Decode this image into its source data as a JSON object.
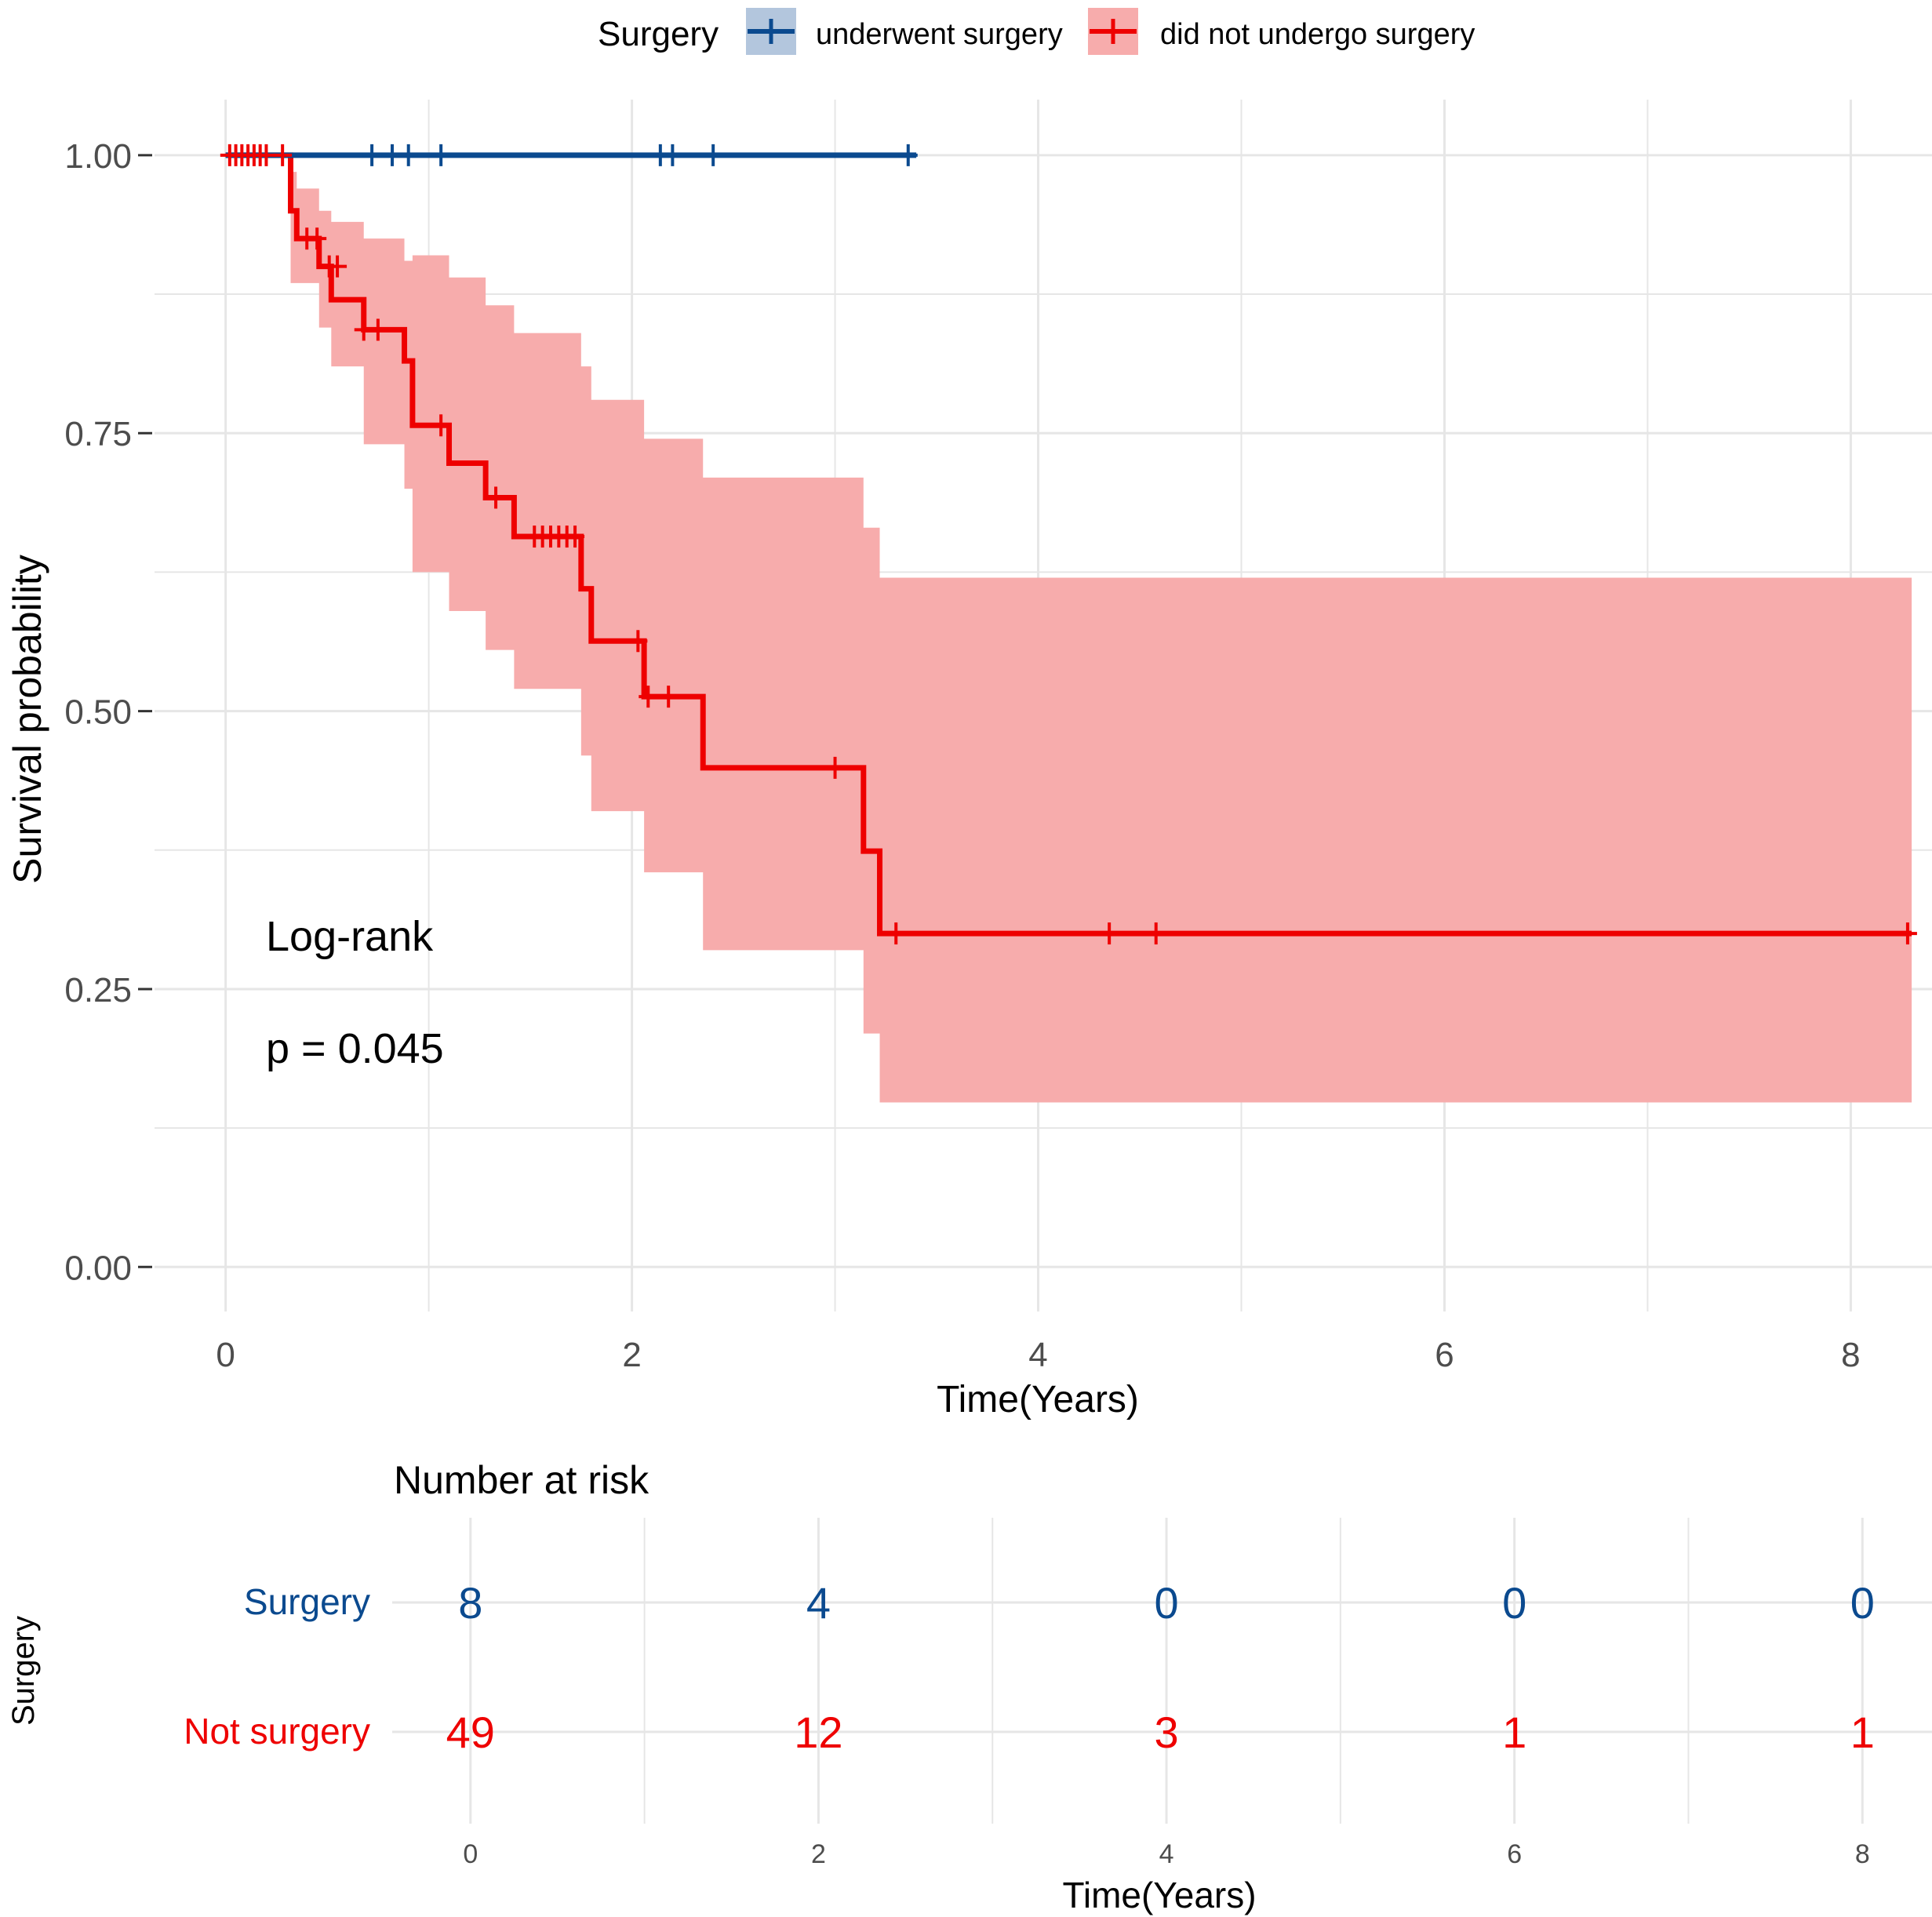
{
  "colors": {
    "surgery": "#0B4A8F",
    "no_surgery": "#EE0000",
    "ci_fill": "#F7ACAC",
    "ci_fill_blue": "#B3C6DD",
    "grid": "#E6E6E6",
    "axis_text": "#4D4D4D",
    "text": "#000000"
  },
  "legend": {
    "title": "Surgery",
    "entries": [
      {
        "label": "underwent surgery",
        "series": "surgery"
      },
      {
        "label": "did not undergo surgery",
        "series": "no_surgery"
      }
    ]
  },
  "annotation": {
    "test": "Log-rank",
    "pvalue": "p = 0.045"
  },
  "chart_data": {
    "type": "line",
    "title": "",
    "xlabel": "Time(Years)",
    "ylabel": "Survival probability",
    "xlim": [
      -0.35,
      8.4
    ],
    "ylim": [
      -0.04,
      1.05
    ],
    "xticks": [
      0,
      2,
      4,
      6,
      8
    ],
    "xtick_labels": [
      "0",
      "2",
      "4",
      "6",
      "8"
    ],
    "yticks": [
      0,
      0.25,
      0.5,
      0.75,
      1.0
    ],
    "ytick_labels": [
      "0.00",
      "0.25",
      "0.50",
      "0.75",
      "1.00"
    ],
    "grid": true,
    "legend_position": "top",
    "series": [
      {
        "name": "underwent surgery",
        "key": "surgery",
        "steps": [
          [
            0,
            1.0
          ],
          [
            3.4,
            1.0
          ]
        ],
        "censors": [
          [
            0.72,
            1.0
          ],
          [
            0.82,
            1.0
          ],
          [
            0.9,
            1.0
          ],
          [
            1.06,
            1.0
          ],
          [
            2.14,
            1.0
          ],
          [
            2.2,
            1.0
          ],
          [
            2.4,
            1.0
          ],
          [
            3.36,
            1.0
          ]
        ],
        "ci": []
      },
      {
        "name": "did not undergo surgery",
        "key": "no_surgery",
        "steps": [
          [
            0,
            1.0
          ],
          [
            0.32,
            0.95
          ],
          [
            0.35,
            0.925
          ],
          [
            0.46,
            0.9
          ],
          [
            0.52,
            0.87
          ],
          [
            0.68,
            0.843
          ],
          [
            0.88,
            0.815
          ],
          [
            0.92,
            0.757
          ],
          [
            1.1,
            0.723
          ],
          [
            1.28,
            0.692
          ],
          [
            1.42,
            0.657
          ],
          [
            1.75,
            0.61
          ],
          [
            1.8,
            0.563
          ],
          [
            2.06,
            0.513
          ],
          [
            2.35,
            0.449
          ],
          [
            3.14,
            0.374
          ],
          [
            3.22,
            0.3
          ],
          [
            8.3,
            0.3
          ]
        ],
        "censors": [
          [
            0.02,
            1.0
          ],
          [
            0.05,
            1.0
          ],
          [
            0.08,
            1.0
          ],
          [
            0.11,
            1.0
          ],
          [
            0.14,
            1.0
          ],
          [
            0.17,
            1.0
          ],
          [
            0.2,
            1.0
          ],
          [
            0.28,
            1.0
          ],
          [
            0.4,
            0.925
          ],
          [
            0.45,
            0.925
          ],
          [
            0.51,
            0.9
          ],
          [
            0.55,
            0.9
          ],
          [
            0.68,
            0.843
          ],
          [
            0.75,
            0.843
          ],
          [
            1.06,
            0.757
          ],
          [
            1.33,
            0.692
          ],
          [
            1.52,
            0.657
          ],
          [
            1.56,
            0.657
          ],
          [
            1.6,
            0.657
          ],
          [
            1.64,
            0.657
          ],
          [
            1.68,
            0.657
          ],
          [
            1.72,
            0.657
          ],
          [
            2.03,
            0.563
          ],
          [
            2.08,
            0.513
          ],
          [
            2.18,
            0.513
          ],
          [
            3.0,
            0.449
          ],
          [
            3.3,
            0.3
          ],
          [
            4.35,
            0.3
          ],
          [
            4.58,
            0.3
          ],
          [
            8.28,
            0.3
          ]
        ],
        "ci": [
          [
            0.32,
            0.985,
            0.885
          ],
          [
            0.35,
            0.97,
            0.885
          ],
          [
            0.46,
            0.95,
            0.845
          ],
          [
            0.52,
            0.94,
            0.81
          ],
          [
            0.68,
            0.925,
            0.74
          ],
          [
            0.88,
            0.905,
            0.7
          ],
          [
            0.92,
            0.91,
            0.625
          ],
          [
            1.1,
            0.89,
            0.59
          ],
          [
            1.28,
            0.865,
            0.555
          ],
          [
            1.42,
            0.84,
            0.52
          ],
          [
            1.75,
            0.81,
            0.46
          ],
          [
            1.8,
            0.78,
            0.41
          ],
          [
            2.06,
            0.745,
            0.355
          ],
          [
            2.35,
            0.71,
            0.285
          ],
          [
            3.14,
            0.665,
            0.21
          ],
          [
            3.22,
            0.62,
            0.148
          ],
          [
            8.3,
            0.62,
            0.148
          ]
        ]
      }
    ]
  },
  "risk_table": {
    "title": "Number at risk",
    "y_title": "Surgery",
    "xlabel": "Time(Years)",
    "times": [
      0,
      2,
      4,
      6,
      8
    ],
    "time_labels": [
      "0",
      "2",
      "4",
      "6",
      "8"
    ],
    "rows": [
      {
        "label": "Surgery",
        "series": "surgery",
        "values": [
          "8",
          "4",
          "0",
          "0",
          "0"
        ]
      },
      {
        "label": "Not surgery",
        "series": "no_surgery",
        "values": [
          "49",
          "12",
          "3",
          "1",
          "1"
        ]
      }
    ]
  }
}
